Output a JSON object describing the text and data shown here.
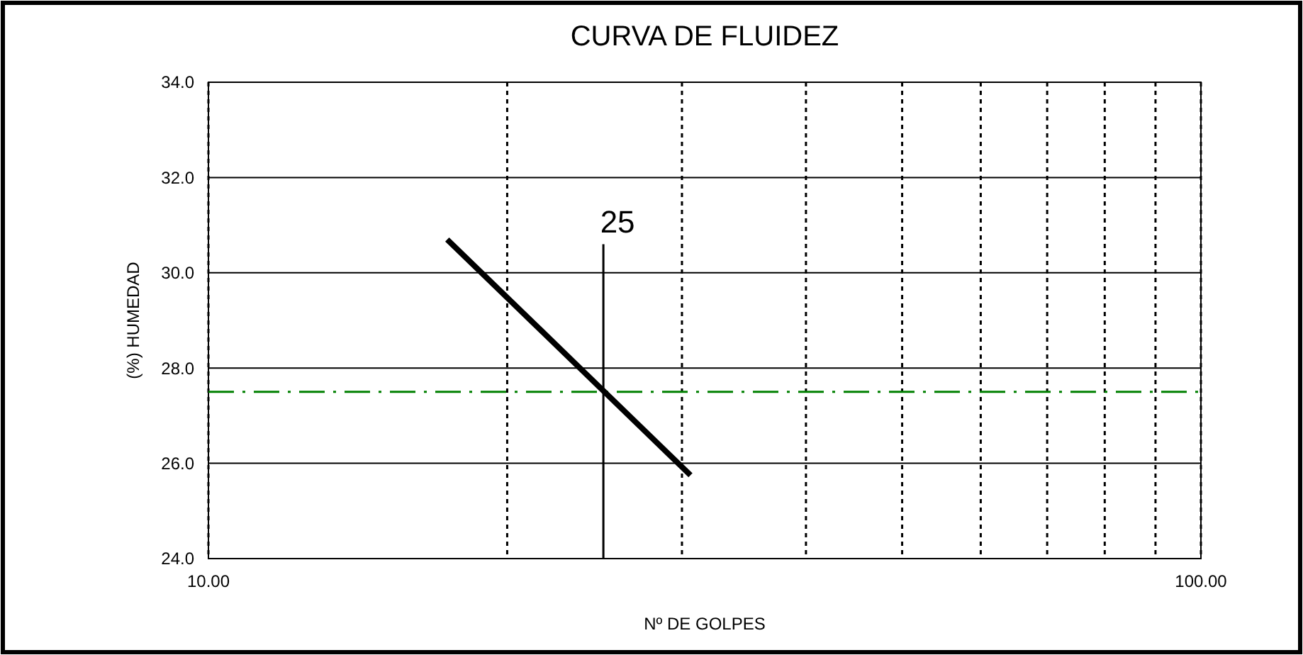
{
  "chart_data": {
    "type": "line",
    "title": "CURVA DE FLUIDEZ",
    "xlabel": "Nº DE GOLPES",
    "ylabel": "(%) HUMEDAD",
    "log": "x",
    "x": [
      17.4,
      30.6
    ],
    "series": [
      {
        "color": "#000000",
        "values": [
          30.7,
          25.75
        ]
      }
    ],
    "xlim": [
      10,
      100
    ],
    "ylim": [
      24,
      34
    ],
    "xticks": [
      {
        "value": 10,
        "label": "10.00"
      },
      {
        "value": 20,
        "label": null
      },
      {
        "value": 30,
        "label": null
      },
      {
        "value": 40,
        "label": null
      },
      {
        "value": 50,
        "label": null
      },
      {
        "value": 60,
        "label": null
      },
      {
        "value": 70,
        "label": null
      },
      {
        "value": 80,
        "label": null
      },
      {
        "value": 90,
        "label": null
      },
      {
        "value": 100,
        "label": "100.00"
      }
    ],
    "yticks": [
      {
        "value": 24,
        "label": "24.0"
      },
      {
        "value": 26,
        "label": "26.0"
      },
      {
        "value": 28,
        "label": "28.0"
      },
      {
        "value": 30,
        "label": "30.0"
      },
      {
        "value": 32,
        "label": "32.0"
      },
      {
        "value": 34,
        "label": "34.0"
      }
    ],
    "grid": true,
    "marker": "none",
    "line_style": "solid",
    "ref_lines": [
      {
        "axis": "x",
        "value": 25,
        "label": "25",
        "color": "#000000",
        "line_style": "solid"
      },
      {
        "axis": "y",
        "value": 27.5,
        "color": "#008000",
        "line_style": "dashed"
      }
    ]
  }
}
